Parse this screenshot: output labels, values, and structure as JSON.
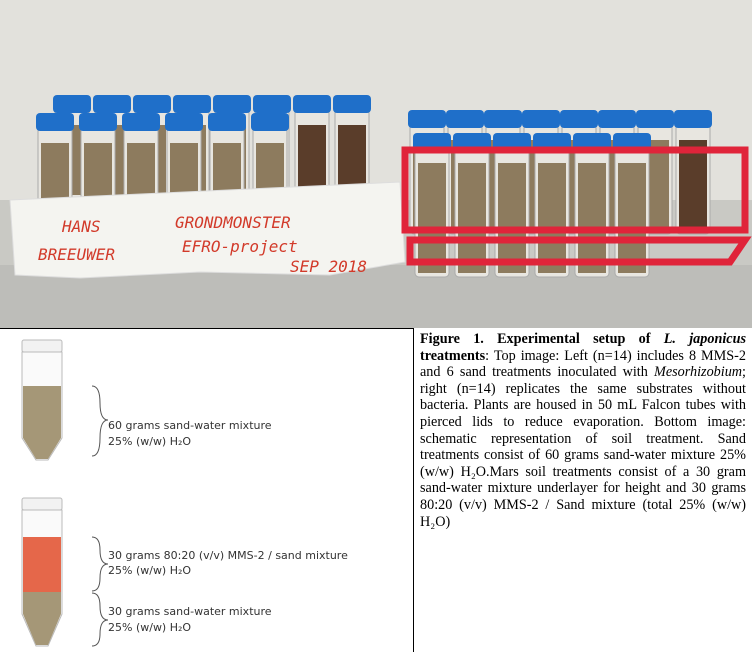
{
  "photo": {
    "labels": [
      "HANS",
      "BREEUWER",
      "GRONDMONSTER",
      "EFRO-project",
      "SEP 2018"
    ]
  },
  "schematic": {
    "tube_1": {
      "lines": [
        "60 grams sand-water mixture",
        "25% (w/w) H₂O"
      ]
    },
    "tube_2_top": {
      "lines": [
        "30 grams 80:20 (v/v) MMS-2 / sand mixture",
        "25% (w/w) H₂O"
      ]
    },
    "tube_2_bottom": {
      "lines": [
        "30 grams sand-water mixture",
        "25% (w/w) H₂O"
      ]
    }
  },
  "caption": [
    "Figure 1. Experimental setup of ",
    "L. japonicus",
    " treatments",
    ": Top image: Left (n=14) includes 8 MMS-2 and 6 sand treatments inoculated with ",
    "Mesorhizobium",
    "; right (n=14) replicates the same substrates without bacteria. Plants are housed in 50 mL Falcon tubes with pierced lids to reduce evaporation. Bottom image: schematic representation of soil treatment. Sand treatments consist of 60 grams sand-water mixture 25% (w/w) H₂O.Mars soil treatments consist of a 30 gram sand-water mixture underlayer for height and 30 grams 80:20 (v/v) MMS-2 / Sand mixture (total 25% (w/w) H₂O)"
  ]
}
